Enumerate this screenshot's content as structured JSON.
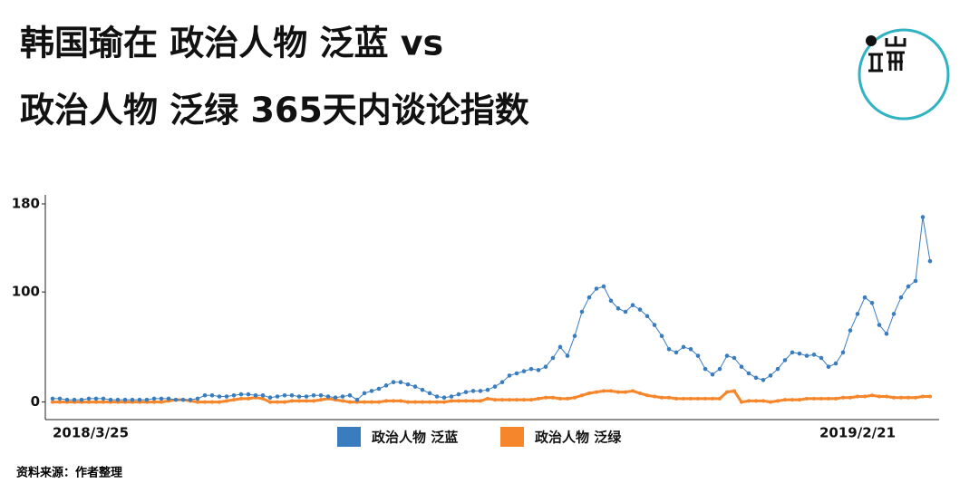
{
  "chart_data": {
    "type": "line",
    "title": [
      "韩国瑜在 政治人物 泛蓝 vs",
      "政治人物 泛绿 365天内谈论指数"
    ],
    "source": "资料来源：作者整理",
    "categories": [
      "2018/3/25",
      null,
      null,
      null,
      null,
      null,
      null,
      null,
      null,
      null,
      null,
      null,
      null,
      null,
      null,
      null,
      null,
      null,
      null,
      null,
      null,
      null,
      null,
      null,
      null,
      null,
      null,
      null,
      null,
      null,
      null,
      null,
      null,
      null,
      null,
      null,
      null,
      null,
      null,
      null,
      null,
      null,
      null,
      null,
      null,
      null,
      null,
      null,
      null,
      null,
      null,
      null,
      null,
      null,
      null,
      null,
      null,
      null,
      null,
      null,
      null,
      null,
      null,
      null,
      null,
      null,
      null,
      null,
      null,
      null,
      null,
      null,
      null,
      null,
      null,
      null,
      null,
      null,
      null,
      null,
      null,
      null,
      null,
      null,
      null,
      null,
      null,
      null,
      null,
      null,
      null,
      null,
      null,
      null,
      null,
      null,
      null,
      null,
      null,
      null,
      null,
      null,
      null,
      null,
      null,
      null,
      null,
      null,
      null,
      null,
      null,
      "2019/2/21",
      null,
      null,
      null,
      null,
      null,
      null,
      null,
      null,
      null,
      null
    ],
    "series": [
      {
        "name": "政治人物 泛蓝",
        "color": "#3a7dbf",
        "values": [
          3,
          3,
          2,
          2,
          2,
          3,
          3,
          3,
          2,
          2,
          2,
          2,
          2,
          2,
          3,
          3,
          3,
          2,
          2,
          2,
          3,
          6,
          6,
          5,
          5,
          6,
          7,
          7,
          6,
          6,
          4,
          5,
          6,
          6,
          5,
          5,
          6,
          6,
          5,
          4,
          5,
          6,
          2,
          8,
          10,
          12,
          15,
          18,
          18,
          16,
          14,
          11,
          8,
          5,
          4,
          5,
          7,
          9,
          10,
          10,
          11,
          14,
          18,
          24,
          26,
          28,
          30,
          29,
          32,
          40,
          50,
          42,
          60,
          82,
          95,
          103,
          105,
          92,
          85,
          82,
          88,
          84,
          78,
          70,
          60,
          48,
          45,
          50,
          48,
          42,
          30,
          25,
          30,
          42,
          40,
          32,
          26,
          22,
          20,
          24,
          30,
          38,
          45,
          44,
          42,
          43,
          40,
          32,
          35,
          45,
          65,
          80,
          95,
          90,
          70,
          62,
          80,
          95,
          105,
          110,
          168,
          128
        ]
      },
      {
        "name": "政治人物 泛绿",
        "color": "#f5862b",
        "values": [
          0,
          0,
          0,
          0,
          0,
          0,
          0,
          0,
          0,
          0,
          0,
          0,
          0,
          0,
          0,
          0,
          1,
          2,
          2,
          1,
          0,
          0,
          0,
          0,
          1,
          2,
          3,
          3,
          4,
          3,
          0,
          0,
          0,
          1,
          1,
          1,
          1,
          2,
          3,
          2,
          1,
          0,
          0,
          0,
          0,
          0,
          1,
          1,
          1,
          0,
          0,
          0,
          0,
          0,
          0,
          1,
          1,
          1,
          1,
          1,
          3,
          2,
          2,
          2,
          2,
          2,
          2,
          3,
          4,
          4,
          3,
          3,
          4,
          6,
          8,
          9,
          10,
          10,
          9,
          9,
          10,
          8,
          6,
          5,
          4,
          4,
          3,
          3,
          3,
          3,
          3,
          3,
          3,
          9,
          10,
          0,
          1,
          1,
          1,
          0,
          1,
          2,
          2,
          2,
          3,
          3,
          3,
          3,
          3,
          4,
          4,
          5,
          5,
          6,
          5,
          5,
          4,
          4,
          4,
          4,
          5,
          5
        ]
      }
    ],
    "ylim": [
      -16,
      180
    ],
    "yticks": [
      0,
      100,
      180
    ]
  }
}
